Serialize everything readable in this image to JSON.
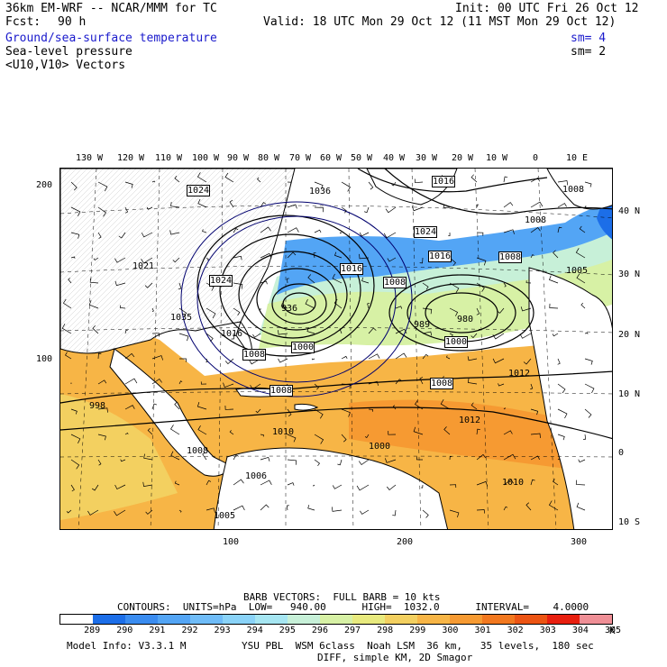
{
  "header": {
    "model": "36km EM-WRF -- NCAR/MMM for TC",
    "init": "Init: 00 UTC Fri 26 Oct 12",
    "fcst_label": "Fcst:",
    "fcst_value": "90 h",
    "valid": "Valid: 18 UTC Mon 29 Oct 12 (11 MST Mon 29 Oct 12)"
  },
  "fields": [
    {
      "label": "Ground/sea-surface temperature",
      "sm": "sm= 4"
    },
    {
      "label": "Sea-level pressure",
      "sm": "sm= 2"
    },
    {
      "label": "<U10,V10> Vectors",
      "sm": ""
    }
  ],
  "lon_labels": [
    "130 W",
    "120 W",
    "110 W",
    "100 W",
    "90 W",
    "80 W",
    "70 W",
    "60 W",
    "50 W",
    "40 W",
    "30 W",
    "20 W",
    "10 W",
    "0",
    "10 E"
  ],
  "lat_labels": [
    "40 N",
    "30 N",
    "20 N",
    "10 N",
    "0",
    "10 S"
  ],
  "grid_labels": {
    "y_top": "200",
    "y_mid": "100",
    "x_100": "100",
    "x_200": "200",
    "x_300": "300"
  },
  "pressure_labels": [
    "1024",
    "1016",
    "1036",
    "1008",
    "1024",
    "1016",
    "1008",
    "1008",
    "1021",
    "1024",
    "1016",
    "1008",
    "1035",
    "1016",
    "1008",
    "1000",
    "1008",
    "1000",
    "1012",
    "1012",
    "1010",
    "1010",
    "1008",
    "1005",
    "1006",
    "998",
    "1008",
    "1000",
    "1005"
  ],
  "center_labels": {
    "L1": "936",
    "L2": "989",
    "L3": "980"
  },
  "footer": {
    "barb_line": "BARB VECTORS:  FULL BARB = 10 kts",
    "contours_line": "CONTOURS:  UNITS=hPa  LOW=   940.00      HIGH=  1032.0      INTERVAL=    4.0000",
    "model_info": "Model Info: V3.3.1 M",
    "physics": "YSU PBL  WSM 6class  Noah LSM  36 km,   35 levels,  180 sec",
    "diff": "DIFF, simple KM, 2D Smagor",
    "unit": "K"
  },
  "colorbar": {
    "ticks": [
      "289",
      "290",
      "291",
      "292",
      "293",
      "294",
      "295",
      "296",
      "297",
      "298",
      "299",
      "300",
      "301",
      "302",
      "303",
      "304",
      "305"
    ],
    "colors": [
      "#ffffff",
      "#1c6ee8",
      "#3a8cf0",
      "#53a5f5",
      "#6fbcf8",
      "#8ad3f8",
      "#a6e6f2",
      "#c7f0d8",
      "#d7f1a5",
      "#e8ea7e",
      "#f3d060",
      "#f7b546",
      "#f69a32",
      "#f2781f",
      "#ec5413",
      "#e81f0f",
      "#ef8f96"
    ]
  }
}
